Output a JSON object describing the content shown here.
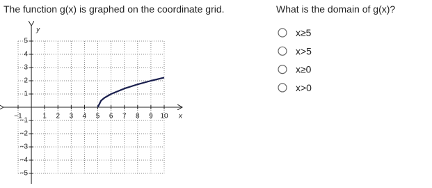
{
  "question": {
    "text": "The function g(x) is graphed on the coordinate grid.",
    "prompt": "What is the domain of g(x)?",
    "options": [
      "x≥5",
      "x>5",
      "x≥0",
      "x>0"
    ]
  },
  "chart_data": {
    "type": "line",
    "x_label": "x",
    "y_label": "y",
    "x": [
      5,
      5.25,
      5.5,
      6,
      7,
      8,
      9,
      10
    ],
    "series": [
      {
        "color": "#1a1f4e",
        "values": [
          0,
          0.5,
          0.71,
          1,
          1.41,
          1.73,
          2,
          2.24
        ]
      }
    ],
    "xlim": [
      -1,
      10
    ],
    "ylim": [
      -5,
      5
    ],
    "xticks": [
      {
        "value": -1,
        "label": "−1"
      },
      1,
      2,
      3,
      4,
      5,
      6,
      7,
      8,
      9,
      10
    ],
    "yticks": [
      5,
      4,
      3,
      2,
      1,
      {
        "value": -1,
        "label": "−1"
      },
      {
        "value": -2,
        "label": "−2"
      },
      {
        "value": -3,
        "label": "−3"
      },
      {
        "value": -4,
        "label": "−4"
      },
      {
        "value": -5,
        "label": "−5"
      }
    ],
    "grid": true
  }
}
